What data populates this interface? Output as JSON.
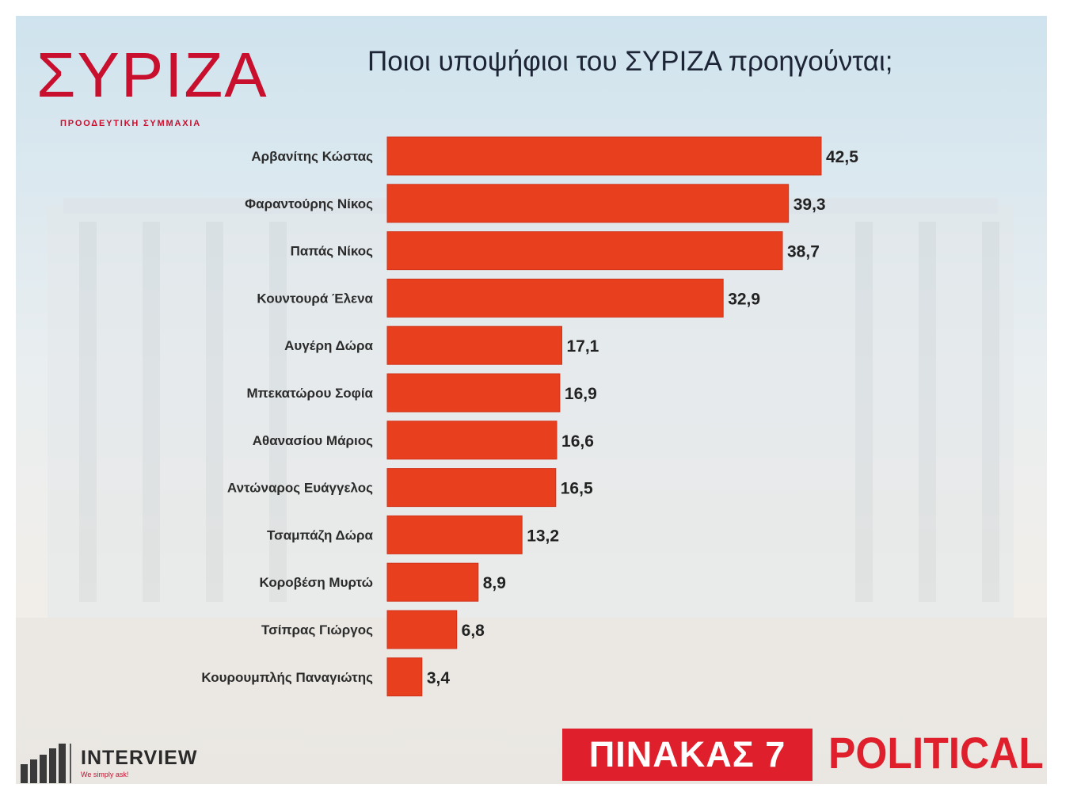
{
  "header": {
    "logo_text": "ΣΥΡΙΖΑ",
    "logo_subtitle": "ΠΡΟΟΔΕΥΤΙΚΗ ΣΥΜΜΑΧΙΑ",
    "title": "Ποιοι υποψήφιοι του ΣΥΡΙΖΑ προηγούνται;"
  },
  "footer": {
    "pollster_name": "INTERVIEW",
    "pollster_tagline": "We simply ask!",
    "table_label": "ΠΙΝΑΚΑΣ 7",
    "brand": "POLITICAL"
  },
  "colors": {
    "bar": "#e8401f",
    "bar_stroke": "#d2321a",
    "brand_red": "#df1f2b",
    "label_text": "#2b2b2b"
  },
  "chart_data": {
    "type": "bar",
    "orientation": "horizontal",
    "title": "Ποιοι υποψήφιοι του ΣΥΡΙΖΑ προηγούνται;",
    "categories": [
      "Αρβανίτης Κώστας",
      "Φαραντούρης Νίκος",
      "Παπάς Νίκος",
      "Κουντουρά Έλενα",
      "Αυγέρη Δώρα",
      "Μπεκατώρου Σοφία",
      "Αθανασίου Μάριος",
      "Αντώναρος Ευάγγελος",
      "Τσαμπάζη Δώρα",
      "Κοροβέση Μυρτώ",
      "Τσίπρας Γιώργος",
      "Κουρουμπλής Παναγιώτης"
    ],
    "values": [
      42.5,
      39.3,
      38.7,
      32.9,
      17.1,
      16.9,
      16.6,
      16.5,
      13.2,
      8.9,
      6.8,
      3.4
    ],
    "value_labels": [
      "42,5",
      "39,3",
      "38,7",
      "32,9",
      "17,1",
      "16,9",
      "16,6",
      "16,5",
      "13,2",
      "8,9",
      "6,8",
      "3,4"
    ],
    "xlim": [
      0,
      42.5
    ],
    "grid": false,
    "legend": "none"
  }
}
